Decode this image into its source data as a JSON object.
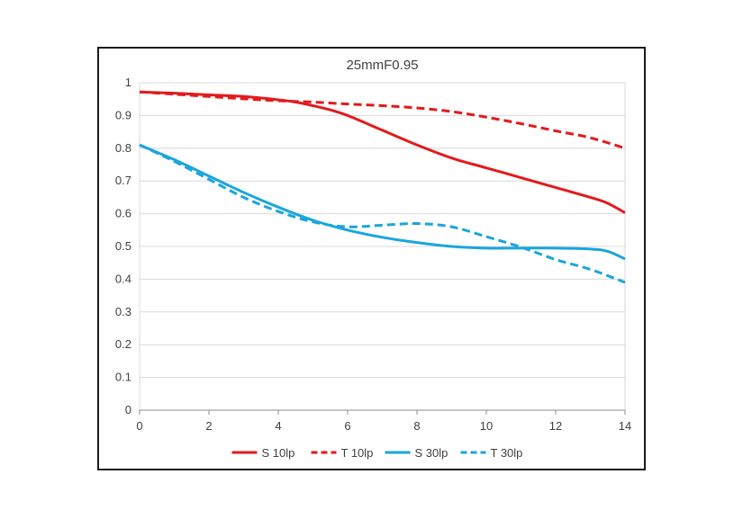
{
  "chart_data": {
    "type": "line",
    "title": "25mmF0.95",
    "xlabel": "",
    "ylabel": "",
    "xlim": [
      0,
      14
    ],
    "ylim": [
      0,
      1
    ],
    "x_ticks": [
      0,
      2,
      4,
      6,
      8,
      10,
      12,
      14
    ],
    "y_ticks": [
      0,
      0.1,
      0.2,
      0.3,
      0.4,
      0.5,
      0.6,
      0.7,
      0.8,
      0.9,
      1
    ],
    "grid": "horizontal",
    "legend_position": "bottom",
    "series": [
      {
        "name": "S 10lp",
        "color": "#e31a1c",
        "dash": "solid",
        "x": [
          0,
          1,
          2,
          3,
          4,
          4.5,
          5,
          5.5,
          6,
          7,
          8,
          9,
          10,
          11,
          12,
          13,
          13.5,
          14
        ],
        "y": [
          0.972,
          0.968,
          0.963,
          0.958,
          0.948,
          0.941,
          0.93,
          0.917,
          0.9,
          0.855,
          0.81,
          0.77,
          0.74,
          0.71,
          0.68,
          0.65,
          0.632,
          0.603
        ]
      },
      {
        "name": "T 10lp",
        "color": "#e31a1c",
        "dash": "dashed",
        "x": [
          0,
          1,
          2,
          3,
          4,
          5,
          6,
          7,
          8,
          9,
          10,
          11,
          12,
          13,
          14
        ],
        "y": [
          0.972,
          0.965,
          0.958,
          0.951,
          0.945,
          0.941,
          0.935,
          0.93,
          0.923,
          0.912,
          0.895,
          0.875,
          0.853,
          0.832,
          0.8
        ]
      },
      {
        "name": "S 30lp",
        "color": "#1aa6dc",
        "dash": "solid",
        "x": [
          0,
          1,
          2,
          3,
          4,
          5,
          6,
          7,
          8,
          9,
          10,
          11,
          12,
          13,
          13.5,
          14
        ],
        "y": [
          0.81,
          0.765,
          0.715,
          0.665,
          0.62,
          0.58,
          0.55,
          0.528,
          0.512,
          0.5,
          0.495,
          0.495,
          0.495,
          0.492,
          0.485,
          0.462
        ]
      },
      {
        "name": "T 30lp",
        "color": "#1aa6dc",
        "dash": "dashed",
        "x": [
          0,
          1,
          2,
          3,
          4,
          5,
          6,
          7,
          8,
          9,
          10,
          11,
          12,
          13,
          14
        ],
        "y": [
          0.81,
          0.76,
          0.705,
          0.65,
          0.607,
          0.575,
          0.56,
          0.565,
          0.57,
          0.56,
          0.53,
          0.498,
          0.46,
          0.43,
          0.39
        ]
      }
    ]
  }
}
